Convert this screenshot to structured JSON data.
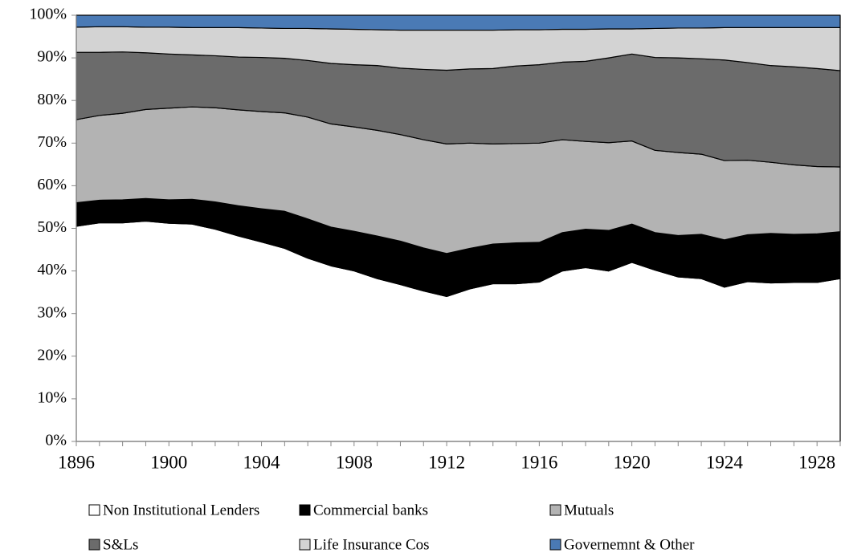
{
  "chart_data": {
    "type": "stacked_area",
    "categories": [
      "1896",
      null,
      null,
      null,
      "1900",
      null,
      null,
      null,
      "1904",
      null,
      null,
      null,
      "1908",
      null,
      null,
      null,
      "1912",
      null,
      null,
      null,
      "1916",
      null,
      null,
      null,
      "1920",
      null,
      null,
      null,
      "1924",
      null,
      null,
      null,
      "1928",
      null
    ],
    "series": [
      {
        "name": "Non Institutional Lenders",
        "color": "#ffffff",
        "values": [
          50.5,
          51.3,
          51.3,
          51.7,
          51.2,
          51.0,
          49.8,
          48.2,
          46.8,
          45.3,
          43.0,
          41.2,
          40.0,
          38.2,
          36.8,
          35.3,
          34.0,
          35.8,
          37.0,
          37.0,
          37.4,
          40.0,
          40.8,
          40.0,
          42.0,
          40.2,
          38.6,
          38.2,
          36.2,
          37.5,
          37.2,
          37.3,
          37.3,
          38.2
        ]
      },
      {
        "name": "Commercial banks",
        "color": "#000000",
        "values": [
          5.5,
          5.3,
          5.4,
          5.3,
          5.5,
          5.8,
          6.4,
          7.1,
          7.8,
          8.7,
          9.2,
          9.1,
          9.3,
          10.0,
          10.2,
          10.1,
          10.1,
          9.5,
          9.3,
          9.6,
          9.3,
          9.0,
          9.0,
          9.5,
          9.0,
          8.8,
          9.7,
          10.4,
          11.1,
          11.0,
          11.6,
          11.3,
          11.4,
          11.0
        ]
      },
      {
        "name": "Mutuals",
        "color": "#b3b3b3",
        "values": [
          19.5,
          19.9,
          20.3,
          20.9,
          21.5,
          21.7,
          22.1,
          22.5,
          22.8,
          23.1,
          23.9,
          24.2,
          24.5,
          24.8,
          25.0,
          25.4,
          25.7,
          24.7,
          23.5,
          23.3,
          23.3,
          21.8,
          20.6,
          20.6,
          19.5,
          19.3,
          19.5,
          18.8,
          18.6,
          17.5,
          16.7,
          16.3,
          15.8,
          15.2
        ]
      },
      {
        "name": "S&Ls",
        "color": "#6b6b6b",
        "values": [
          15.8,
          14.8,
          14.4,
          13.3,
          12.7,
          12.2,
          12.2,
          12.4,
          12.7,
          12.8,
          13.3,
          14.2,
          14.6,
          15.2,
          15.6,
          16.5,
          17.3,
          17.4,
          17.7,
          18.2,
          18.4,
          18.2,
          18.8,
          19.9,
          20.4,
          21.8,
          22.2,
          22.4,
          23.6,
          22.9,
          22.7,
          23.0,
          23.0,
          22.6
        ]
      },
      {
        "name": "Life Insurance Cos",
        "color": "#d3d3d3",
        "values": [
          5.9,
          6.0,
          5.9,
          6.0,
          6.3,
          6.4,
          6.6,
          6.9,
          6.9,
          7.0,
          7.5,
          8.1,
          8.3,
          8.4,
          8.9,
          9.2,
          9.4,
          9.1,
          9.0,
          8.5,
          8.2,
          7.7,
          7.5,
          6.8,
          5.9,
          6.8,
          7.0,
          7.2,
          7.6,
          8.2,
          8.9,
          9.2,
          9.6,
          10.1
        ]
      },
      {
        "name": "Governemnt & Other",
        "color": "#4a7ab5",
        "values": [
          2.8,
          2.7,
          2.7,
          2.8,
          2.8,
          2.9,
          2.9,
          2.9,
          3.0,
          3.1,
          3.1,
          3.2,
          3.3,
          3.4,
          3.5,
          3.5,
          3.5,
          3.5,
          3.5,
          3.4,
          3.4,
          3.3,
          3.3,
          3.2,
          3.2,
          3.1,
          3.0,
          3.0,
          2.9,
          2.9,
          2.9,
          2.9,
          2.9,
          2.9
        ]
      }
    ],
    "ylim": [
      0,
      100
    ],
    "yticks": [
      {
        "value": 0,
        "label": "0%"
      },
      {
        "value": 10,
        "label": "10%"
      },
      {
        "value": 20,
        "label": "20%"
      },
      {
        "value": 30,
        "label": "30%"
      },
      {
        "value": 40,
        "label": "40%"
      },
      {
        "value": 50,
        "label": "50%"
      },
      {
        "value": 60,
        "label": "60%"
      },
      {
        "value": 70,
        "label": "70%"
      },
      {
        "value": 80,
        "label": "80%"
      },
      {
        "value": 90,
        "label": "90%"
      },
      {
        "value": 100,
        "label": "100%"
      }
    ],
    "grid": false
  }
}
